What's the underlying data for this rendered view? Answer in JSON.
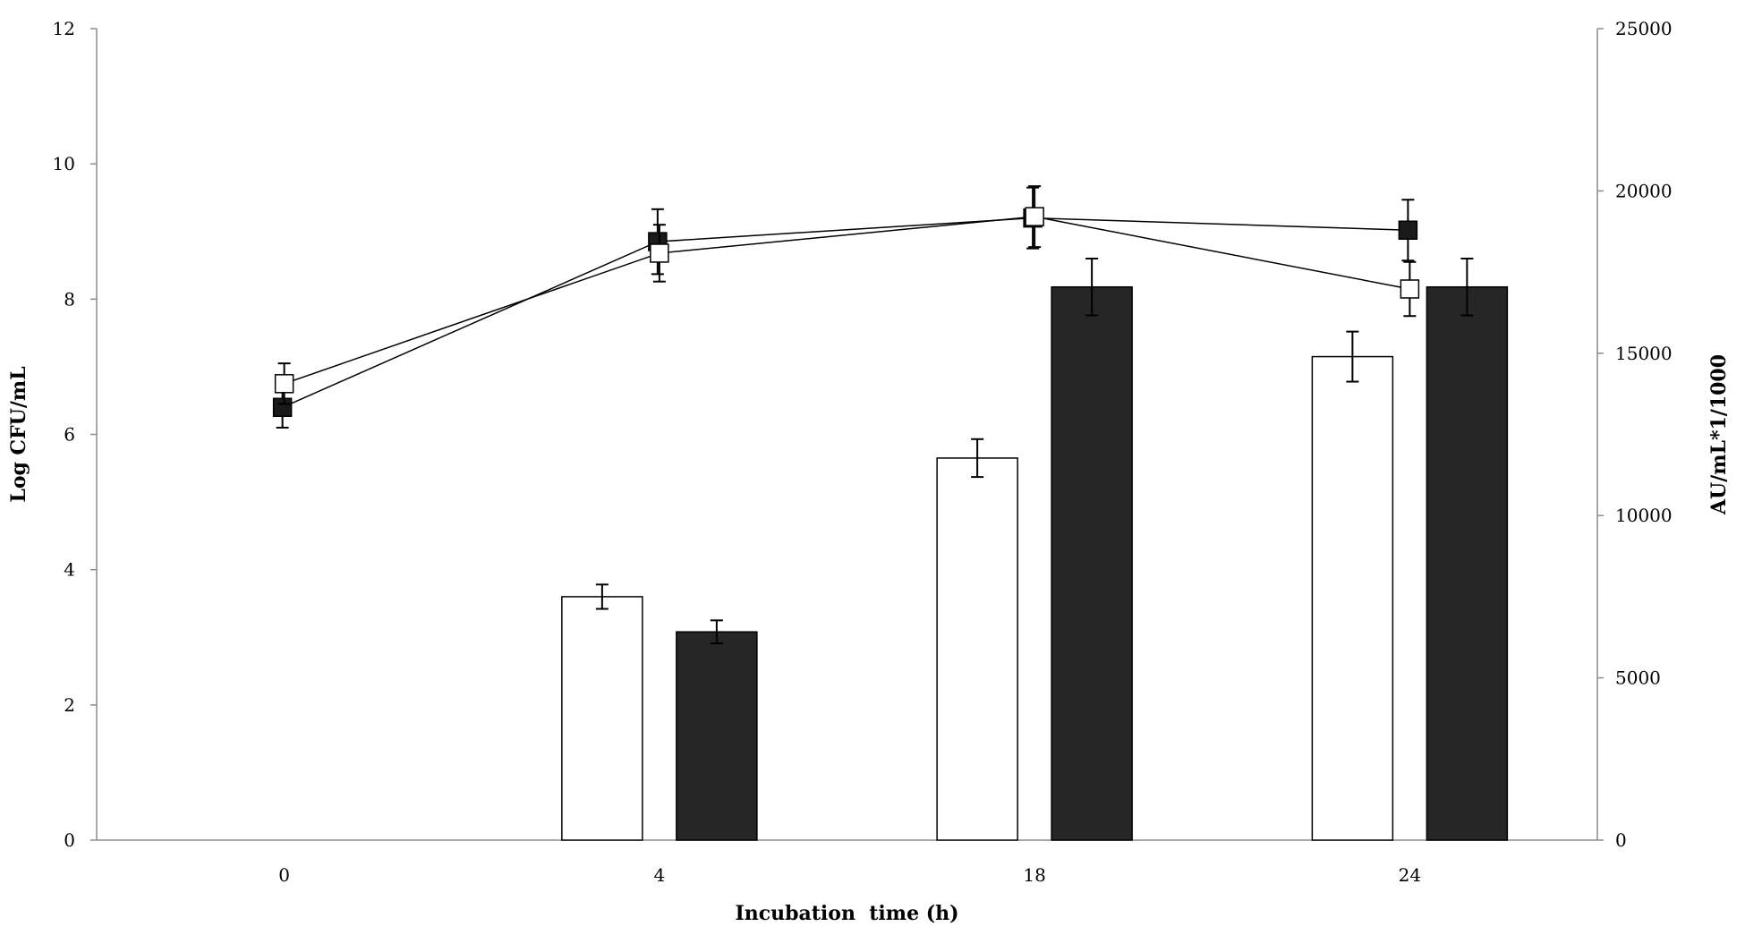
{
  "chart_data": {
    "type": "bar",
    "title": "",
    "xlabel": "Incubation  time (h)",
    "ylabel": "Log CFU/mL",
    "y2label": "AU/mL*1/1000",
    "categories": [
      "0",
      "4",
      "18",
      "24"
    ],
    "ylim": [
      0,
      12
    ],
    "y2lim": [
      0,
      25000
    ],
    "yticks": [
      "0",
      "2",
      "4",
      "6",
      "8",
      "10",
      "12"
    ],
    "y2ticks": [
      "0",
      "5000",
      "10000",
      "15000",
      "20000",
      "25000"
    ],
    "grid": false,
    "legend": "none",
    "bar_series": [
      {
        "fill": "#ffffff",
        "axis": "left",
        "values": [
          0,
          3.6,
          5.65,
          7.15
        ],
        "errors": [
          0,
          0.18,
          0.28,
          0.37
        ]
      },
      {
        "fill": "#262626",
        "axis": "left",
        "values": [
          0,
          3.08,
          8.18,
          8.18
        ],
        "errors": [
          0,
          0.17,
          0.42,
          0.42
        ]
      }
    ],
    "line_series": [
      {
        "marker": "filled-square",
        "marker_fill": "#1a1a1a",
        "axis": "left",
        "values": [
          6.4,
          8.85,
          9.2,
          9.02
        ],
        "errors": [
          0.3,
          0.48,
          0.45,
          0.45
        ]
      },
      {
        "marker": "open-square",
        "marker_fill": "#ffffff",
        "axis": "left",
        "values": [
          6.75,
          8.68,
          9.22,
          8.15
        ],
        "errors": [
          0.3,
          0.42,
          0.45,
          0.4
        ]
      }
    ]
  }
}
